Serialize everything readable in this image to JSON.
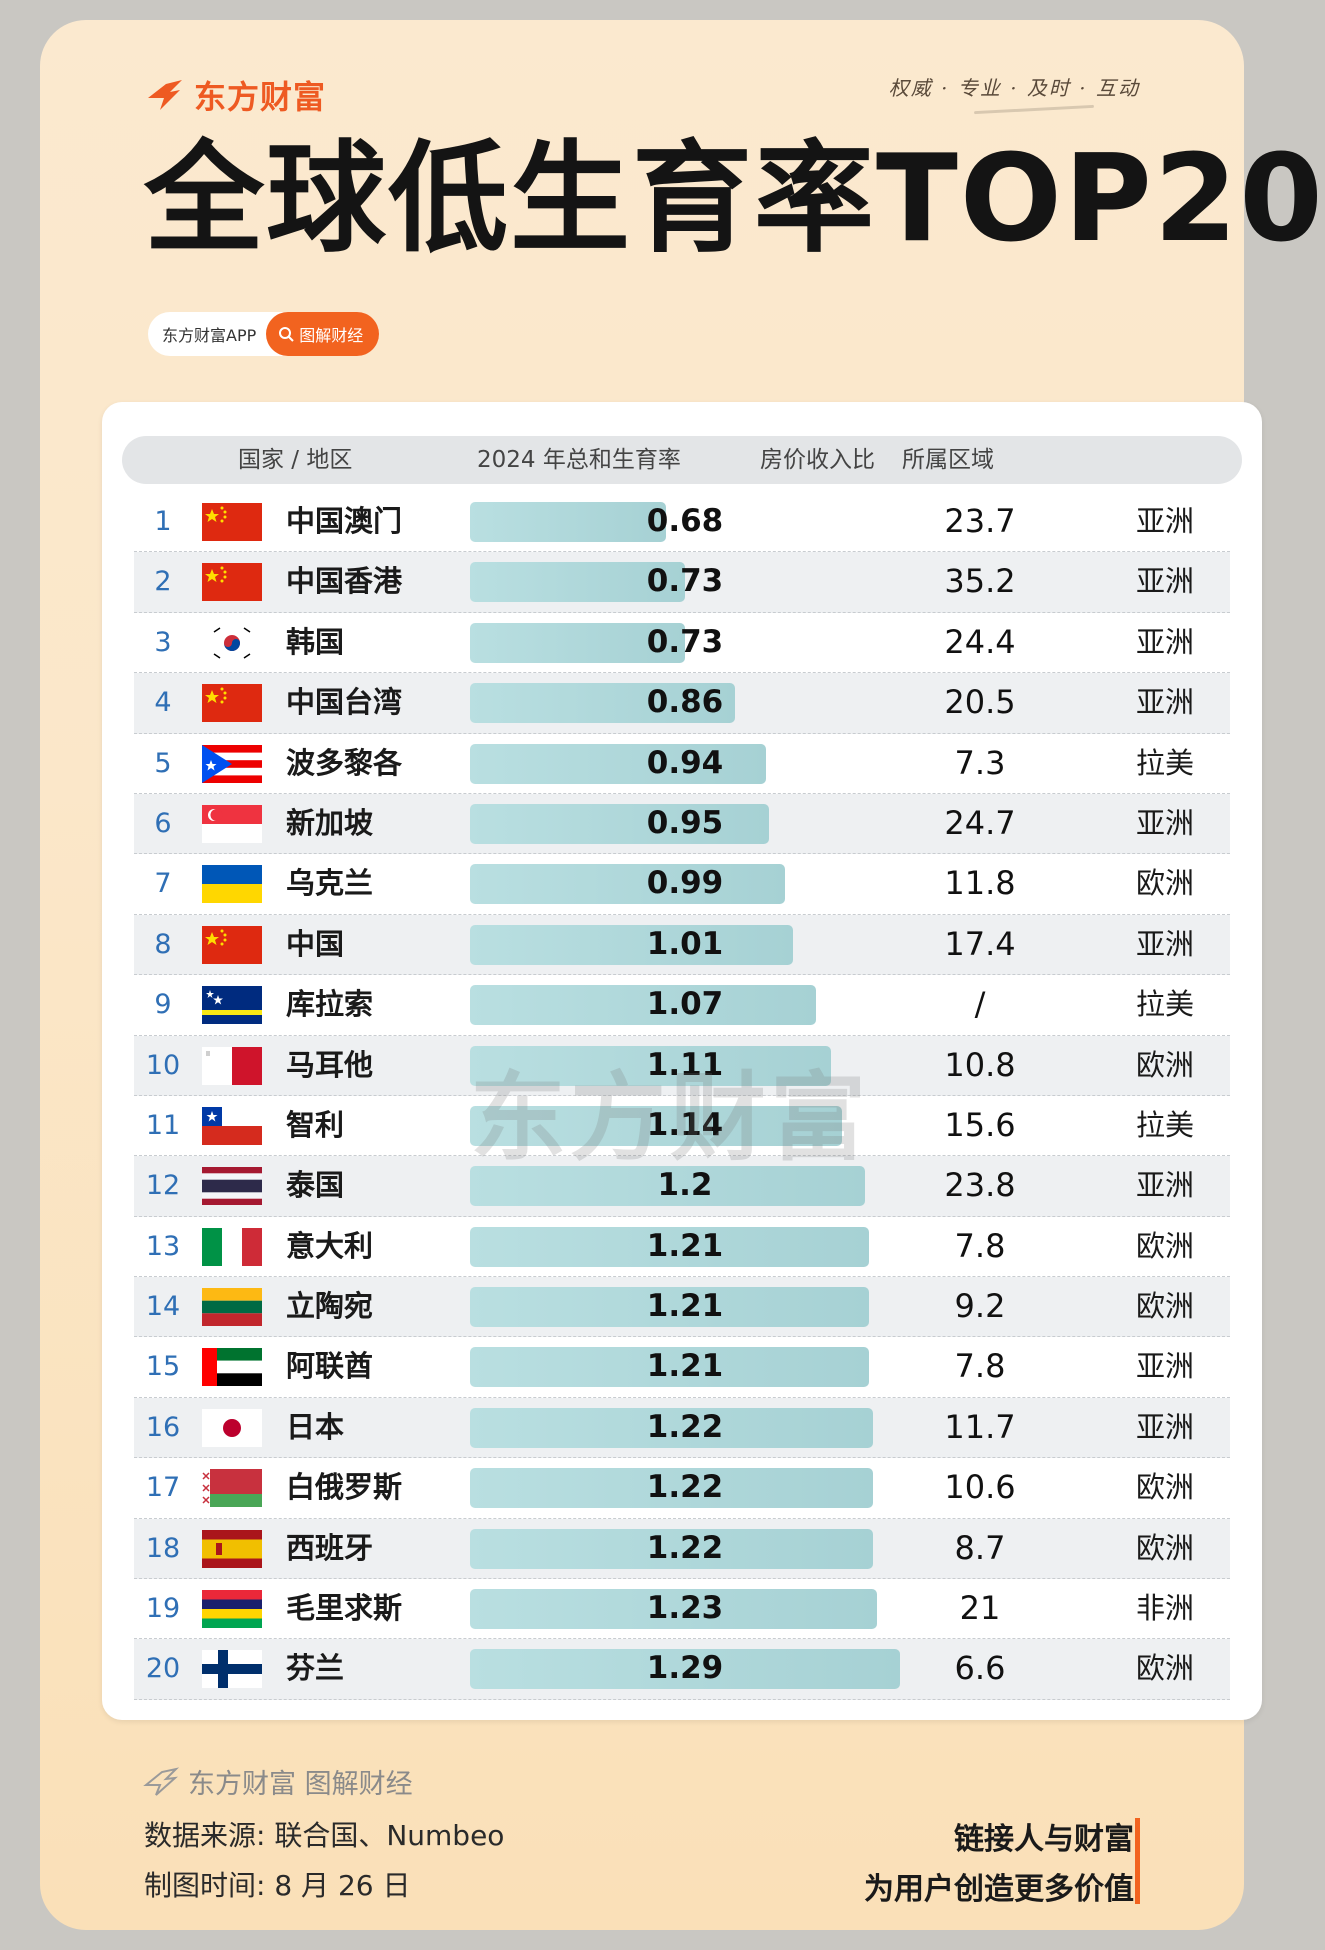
{
  "brand": {
    "name": "东方财富",
    "tagline": "权威 · 专业 · 及时 · 互动"
  },
  "title": "全球低生育率TOP20",
  "pill": {
    "app": "东方财富APP",
    "tag": "图解财经"
  },
  "chart_data": {
    "type": "table",
    "title": "全球低生育率TOP20",
    "columns": [
      "国家 / 地区",
      "2024 年总和生育率",
      "房价收入比",
      "所属区域"
    ],
    "rows": [
      {
        "rank": "1",
        "country": "中国澳门",
        "flag": "china",
        "rate": 0.68,
        "rate_label": "0.68",
        "ratio": "23.7",
        "region": "亚洲"
      },
      {
        "rank": "2",
        "country": "中国香港",
        "flag": "china",
        "rate": 0.73,
        "rate_label": "0.73",
        "ratio": "35.2",
        "region": "亚洲"
      },
      {
        "rank": "3",
        "country": "韩国",
        "flag": "korea",
        "rate": 0.73,
        "rate_label": "0.73",
        "ratio": "24.4",
        "region": "亚洲"
      },
      {
        "rank": "4",
        "country": "中国台湾",
        "flag": "china",
        "rate": 0.86,
        "rate_label": "0.86",
        "ratio": "20.5",
        "region": "亚洲"
      },
      {
        "rank": "5",
        "country": "波多黎各",
        "flag": "puerto-rico",
        "rate": 0.94,
        "rate_label": "0.94",
        "ratio": "7.3",
        "region": "拉美"
      },
      {
        "rank": "6",
        "country": "新加坡",
        "flag": "singapore",
        "rate": 0.95,
        "rate_label": "0.95",
        "ratio": "24.7",
        "region": "亚洲"
      },
      {
        "rank": "7",
        "country": "乌克兰",
        "flag": "ukraine",
        "rate": 0.99,
        "rate_label": "0.99",
        "ratio": "11.8",
        "region": "欧洲"
      },
      {
        "rank": "8",
        "country": "中国",
        "flag": "china",
        "rate": 1.01,
        "rate_label": "1.01",
        "ratio": "17.4",
        "region": "亚洲"
      },
      {
        "rank": "9",
        "country": "库拉索",
        "flag": "curacao",
        "rate": 1.07,
        "rate_label": "1.07",
        "ratio": "/",
        "region": "拉美"
      },
      {
        "rank": "10",
        "country": "马耳他",
        "flag": "malta",
        "rate": 1.11,
        "rate_label": "1.11",
        "ratio": "10.8",
        "region": "欧洲"
      },
      {
        "rank": "11",
        "country": "智利",
        "flag": "chile",
        "rate": 1.14,
        "rate_label": "1.14",
        "ratio": "15.6",
        "region": "拉美"
      },
      {
        "rank": "12",
        "country": "泰国",
        "flag": "thailand",
        "rate": 1.2,
        "rate_label": "1.2",
        "ratio": "23.8",
        "region": "亚洲"
      },
      {
        "rank": "13",
        "country": "意大利",
        "flag": "italy",
        "rate": 1.21,
        "rate_label": "1.21",
        "ratio": "7.8",
        "region": "欧洲"
      },
      {
        "rank": "14",
        "country": "立陶宛",
        "flag": "lithuania",
        "rate": 1.21,
        "rate_label": "1.21",
        "ratio": "9.2",
        "region": "欧洲"
      },
      {
        "rank": "15",
        "country": "阿联酋",
        "flag": "uae",
        "rate": 1.21,
        "rate_label": "1.21",
        "ratio": "7.8",
        "region": "亚洲"
      },
      {
        "rank": "16",
        "country": "日本",
        "flag": "japan",
        "rate": 1.22,
        "rate_label": "1.22",
        "ratio": "11.7",
        "region": "亚洲"
      },
      {
        "rank": "17",
        "country": "白俄罗斯",
        "flag": "belarus",
        "rate": 1.22,
        "rate_label": "1.22",
        "ratio": "10.6",
        "region": "欧洲"
      },
      {
        "rank": "18",
        "country": "西班牙",
        "flag": "spain",
        "rate": 1.22,
        "rate_label": "1.22",
        "ratio": "8.7",
        "region": "欧洲"
      },
      {
        "rank": "19",
        "country": "毛里求斯",
        "flag": "mauritius",
        "rate": 1.23,
        "rate_label": "1.23",
        "ratio": "21",
        "region": "非洲"
      },
      {
        "rank": "20",
        "country": "芬兰",
        "flag": "finland",
        "rate": 1.29,
        "rate_label": "1.29",
        "ratio": "6.6",
        "region": "欧洲"
      }
    ]
  },
  "watermark": "东方财富",
  "footer": {
    "brand": "东方财富 图解财经",
    "source": "数据来源: 联合国、Numbeo",
    "made_time": "制图时间: 8 月 26 日",
    "slogan_line1": "链接人与财富",
    "slogan_line2": "为用户创造更多价值"
  },
  "colors": {
    "accent": "#f2631f",
    "bar": "#aed6d8",
    "rank": "#2f6fb5"
  }
}
